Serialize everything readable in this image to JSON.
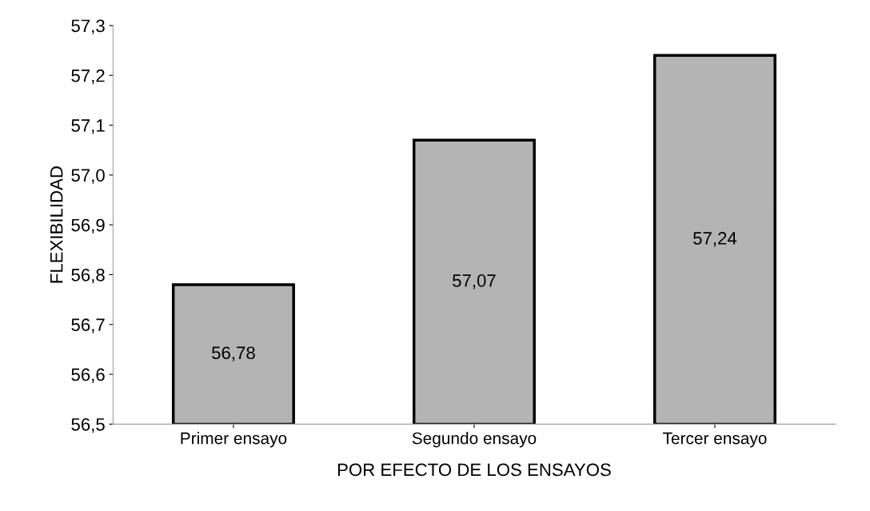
{
  "chart_data": {
    "type": "bar",
    "xlabel": "POR EFECTO DE LOS ENSAYOS",
    "ylabel": "FLEXIBILIDAD",
    "categories": [
      "Primer ensayo",
      "Segundo ensayo",
      "Tercer ensayo"
    ],
    "values": [
      56.78,
      57.07,
      57.24
    ],
    "value_labels": [
      "56,78",
      "57,07",
      "57,24"
    ],
    "color": "#b4b4b4",
    "ylim": [
      56.5,
      57.3
    ],
    "yticks": [
      {
        "value": 56.5,
        "label": "56,5"
      },
      {
        "value": 56.6,
        "label": "56,6"
      },
      {
        "value": 56.7,
        "label": "56,7"
      },
      {
        "value": 56.8,
        "label": "56,8"
      },
      {
        "value": 56.9,
        "label": "56,9"
      },
      {
        "value": 57.0,
        "label": "57,0"
      },
      {
        "value": 57.1,
        "label": "57,1"
      },
      {
        "value": 57.2,
        "label": "57,2"
      },
      {
        "value": 57.3,
        "label": "57,3"
      }
    ],
    "grid": false
  }
}
